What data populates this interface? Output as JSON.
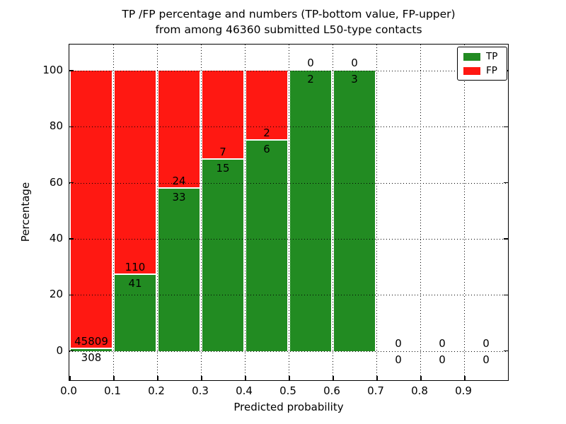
{
  "title": {
    "line1": "TP /FP percentage and numbers (TP-bottom value, FP-upper)",
    "line2": "from among 46360 submitted L50-type contacts"
  },
  "axes": {
    "xlabel": "Predicted probability",
    "ylabel": "Percentage",
    "x_tick_labels": [
      "0.0",
      "0.1",
      "0.2",
      "0.3",
      "0.4",
      "0.5",
      "0.6",
      "0.7",
      "0.8",
      "0.9"
    ],
    "y_tick_labels": [
      "0",
      "20",
      "40",
      "60",
      "80",
      "100"
    ],
    "y_tick_values": [
      0,
      20,
      40,
      60,
      80,
      100
    ],
    "grid_style": "dotted"
  },
  "legend": {
    "position": "upper right",
    "items": [
      {
        "label": "TP",
        "color": "#228b22"
      },
      {
        "label": "FP",
        "color": "#ff1812"
      }
    ]
  },
  "chart_data": {
    "type": "bar",
    "stacked": true,
    "title": "TP /FP percentage and numbers (TP-bottom value, FP-upper) from among 46360 submitted L50-type contacts",
    "xlabel": "Predicted probability",
    "ylabel": "Percentage",
    "xlim": [
      0,
      1.0
    ],
    "ylim": [
      -10.4,
      109.3
    ],
    "grid": true,
    "legend_position": "upper right",
    "bin_width": 0.1,
    "categories": [
      "0.0-0.1",
      "0.1-0.2",
      "0.2-0.3",
      "0.3-0.4",
      "0.4-0.5",
      "0.5-0.6",
      "0.6-0.7",
      "0.7-0.8",
      "0.8-0.9",
      "0.9-1.0"
    ],
    "bin_starts": [
      0.0,
      0.1,
      0.2,
      0.3,
      0.4,
      0.5,
      0.6,
      0.7,
      0.8,
      0.9
    ],
    "series": [
      {
        "name": "TP",
        "color": "#228b22",
        "counts": [
          308,
          41,
          33,
          15,
          6,
          2,
          3,
          0,
          0,
          0
        ]
      },
      {
        "name": "FP",
        "color": "#ff1812",
        "counts": [
          45809,
          110,
          24,
          7,
          2,
          0,
          0,
          0,
          0,
          0
        ]
      }
    ],
    "tp_percent_of_bin": [
      0.67,
      27.15,
      57.89,
      68.18,
      75.0,
      100.0,
      100.0,
      null,
      null,
      null
    ],
    "total_submitted": 46360
  }
}
